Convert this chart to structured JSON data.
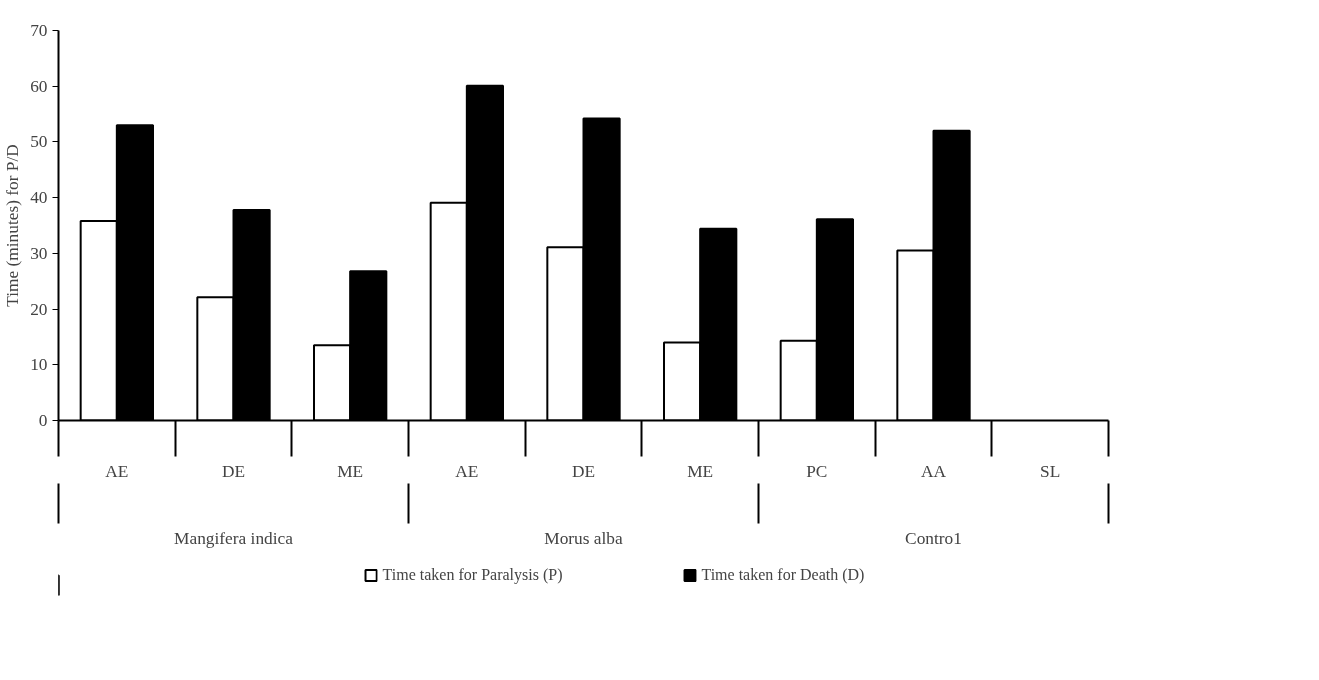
{
  "chart_data": {
    "type": "bar",
    "ylabel": "Time (minutes) for P/D",
    "categories": [
      "AE",
      "DE",
      "ME",
      "AE",
      "DE",
      "ME",
      "PC",
      "AA",
      "SL"
    ],
    "series": [
      {
        "name": "Time taken for Paralysis (P)",
        "color": "#ffffff",
        "values": [
          35.8,
          22.1,
          13.5,
          39.1,
          31.1,
          14.0,
          14.3,
          30.5,
          null
        ]
      },
      {
        "name": "Time taken for Death (D)",
        "color": "#000000",
        "values": [
          53.0,
          37.8,
          26.8,
          60.1,
          54.2,
          34.4,
          36.1,
          52.0,
          null
        ]
      }
    ],
    "annotations": [
      "Mangifera indica",
      "Morus alba",
      "Contro1"
    ],
    "ylim": [
      0,
      70
    ],
    "yticks": [
      0,
      10,
      20,
      30,
      40,
      50,
      60,
      70
    ],
    "grid": false,
    "legend": "bottom"
  }
}
